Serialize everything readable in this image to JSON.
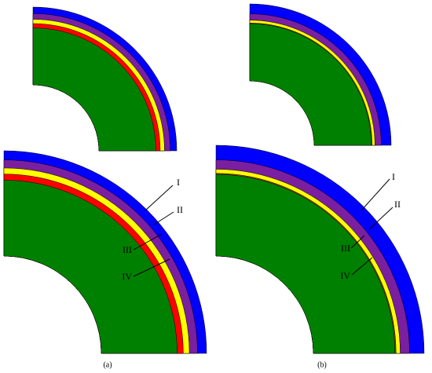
{
  "panels": [
    {
      "label": "(a)",
      "callouts": [
        "I",
        "II",
        "III",
        "IV"
      ]
    },
    {
      "label": "(b)",
      "callouts": [
        "I",
        "II",
        "III",
        "IV"
      ]
    }
  ]
}
